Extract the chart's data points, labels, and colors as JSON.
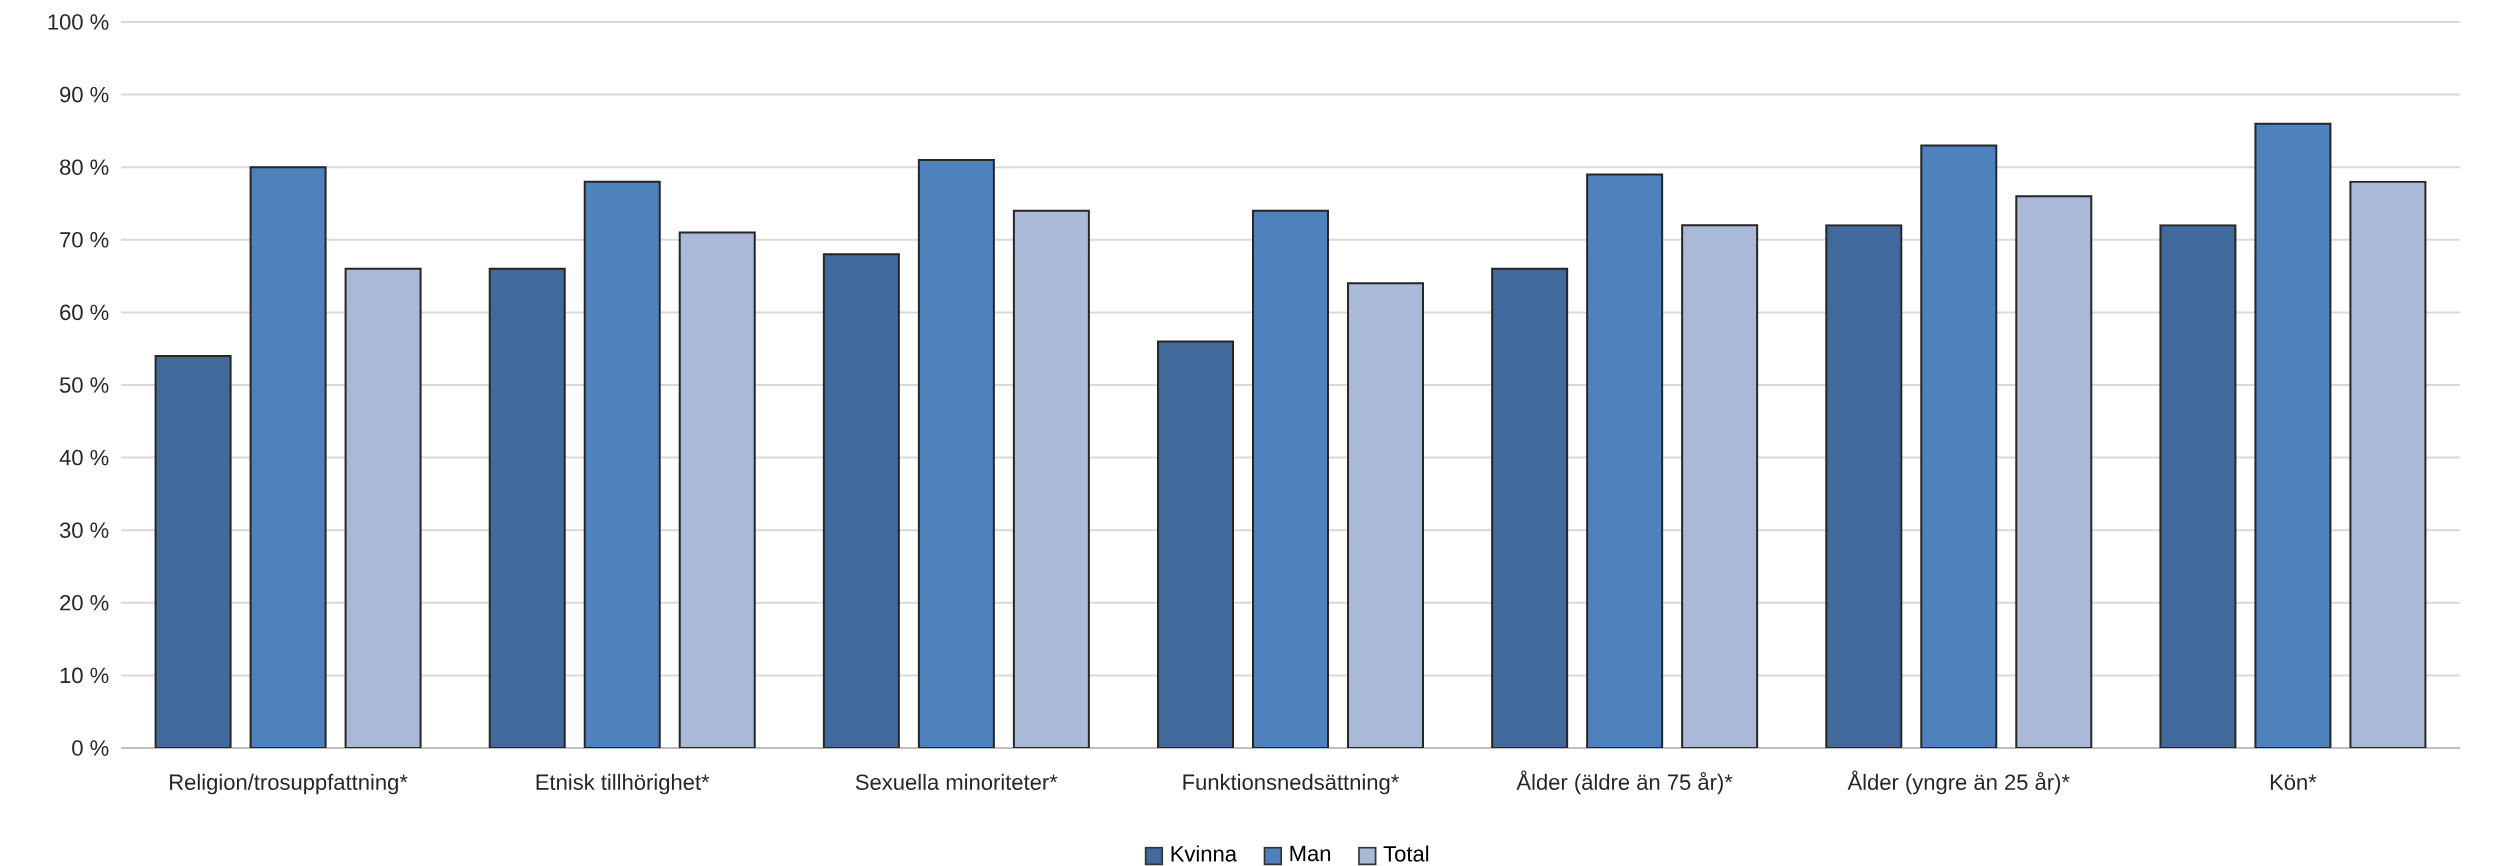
{
  "chart_data": {
    "type": "bar",
    "categories": [
      "Religion/trosuppfattning*",
      "Etnisk tillhörighet*",
      "Sexuella minoriteter*",
      "Funktionsnedsättning*",
      "Ålder (äldre än 75 år)*",
      "Ålder (yngre än 25 år)*",
      "Kön*"
    ],
    "series": [
      {
        "name": "Kvinna",
        "color": "#41699b",
        "values": [
          54,
          66,
          68,
          56,
          66,
          72,
          72
        ]
      },
      {
        "name": "Man",
        "color": "#4f81bd",
        "values": [
          80,
          78,
          81,
          74,
          79,
          83,
          86
        ]
      },
      {
        "name": "Total",
        "color": "#aab9d8",
        "values": [
          66,
          71,
          74,
          64,
          72,
          76,
          78
        ]
      }
    ],
    "ylim": [
      0,
      100
    ],
    "yticks": [
      {
        "value": 0,
        "label": "0 %"
      },
      {
        "value": 10,
        "label": "10 %"
      },
      {
        "value": 20,
        "label": "20 %"
      },
      {
        "value": 30,
        "label": "30 %"
      },
      {
        "value": 40,
        "label": "40 %"
      },
      {
        "value": 50,
        "label": "50 %"
      },
      {
        "value": 60,
        "label": "60 %"
      },
      {
        "value": 70,
        "label": "70 %"
      },
      {
        "value": 80,
        "label": "80 %"
      },
      {
        "value": 90,
        "label": "90 %"
      },
      {
        "value": 100,
        "label": "100 %"
      }
    ],
    "grid": "y",
    "legend": "bottom"
  }
}
